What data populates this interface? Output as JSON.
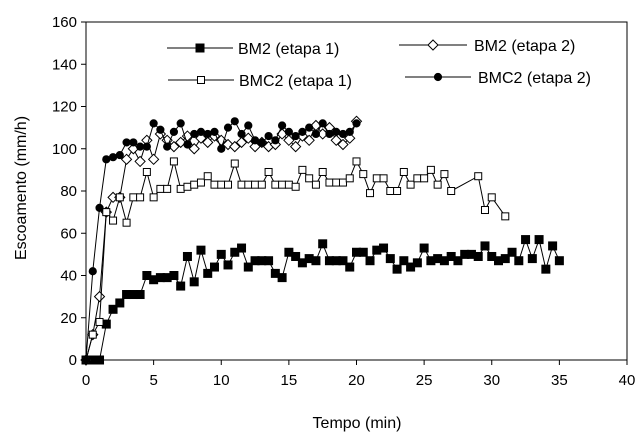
{
  "chart_data": {
    "type": "line",
    "title": "",
    "xlabel": "Tempo (min)",
    "ylabel": "Escoamento (mm/h)",
    "xlim": [
      0,
      40
    ],
    "ylim": [
      0,
      160
    ],
    "xticks": [
      0,
      5,
      10,
      15,
      20,
      25,
      30,
      35,
      40
    ],
    "yticks": [
      0,
      20,
      40,
      60,
      80,
      100,
      120,
      140,
      160
    ],
    "grid": false,
    "legend_position": "top",
    "series": [
      {
        "name": "BM2 (etapa 1)",
        "marker": "filled-square",
        "x": [
          0,
          0.3,
          0.6,
          1,
          1.5,
          2,
          2.5,
          3,
          3.5,
          4,
          4.5,
          5,
          5.5,
          6,
          6.5,
          7,
          7.5,
          8,
          8.5,
          9,
          9.5,
          10,
          10.5,
          11,
          11.5,
          12,
          12.5,
          13,
          13.5,
          14,
          14.5,
          15,
          15.5,
          16,
          16.5,
          17,
          17.5,
          18,
          18.5,
          19,
          19.5,
          20,
          20.5,
          21,
          21.5,
          22,
          22.5,
          23,
          23.5,
          24,
          24.5,
          25,
          25.5,
          26,
          26.5,
          27,
          27.5,
          28,
          28.5,
          29,
          29.5,
          30,
          30.5,
          31,
          31.5,
          32,
          32.5,
          33,
          33.5,
          34,
          34.5,
          35
        ],
        "y": [
          0,
          0,
          0,
          0,
          17,
          24,
          27,
          31,
          31,
          31,
          40,
          38,
          39,
          39,
          40,
          35,
          49,
          37,
          52,
          41,
          44,
          50,
          45,
          51,
          53,
          44,
          47,
          47,
          47,
          41,
          39,
          51,
          49,
          46,
          48,
          47,
          55,
          47,
          47,
          47,
          44,
          51,
          51,
          47,
          52,
          53,
          48,
          43,
          47,
          44,
          46,
          53,
          47,
          48,
          47,
          49,
          47,
          50,
          50,
          49,
          54,
          49,
          47,
          48,
          51,
          47,
          57,
          48,
          57,
          43,
          54,
          47
        ]
      },
      {
        "name": "BM2 (etapa 2)",
        "marker": "open-diamond",
        "x": [
          0,
          0.5,
          1,
          1.5,
          2,
          2.5,
          3,
          3.5,
          4,
          4.5,
          5,
          5.5,
          6,
          6.5,
          7,
          7.5,
          8,
          8.5,
          9,
          9.5,
          10,
          10.5,
          11,
          11.5,
          12,
          12.5,
          13,
          13.5,
          14,
          14.5,
          15,
          15.5,
          16,
          16.5,
          17,
          17.5,
          18,
          18.5,
          19,
          19.5,
          20
        ],
        "y": [
          0,
          12,
          30,
          70,
          77,
          77,
          95,
          100,
          94,
          104,
          95,
          107,
          104,
          101,
          103,
          106,
          100,
          105,
          103,
          106,
          104,
          102,
          101,
          103,
          105,
          101,
          103,
          101,
          102,
          107,
          104,
          101,
          106,
          104,
          111,
          107,
          110,
          104,
          102,
          105,
          113
        ]
      },
      {
        "name": "BMC2 (etapa 1)",
        "marker": "open-square",
        "x": [
          0,
          0.5,
          1,
          1.5,
          2,
          2.5,
          3,
          3.5,
          4,
          4.5,
          5,
          5.5,
          6,
          6.5,
          7,
          7.5,
          8,
          8.5,
          9,
          9.5,
          10,
          10.5,
          11,
          11.5,
          12,
          12.5,
          13,
          13.5,
          14,
          14.5,
          15,
          15.5,
          16,
          16.5,
          17,
          17.5,
          18,
          18.5,
          19,
          19.5,
          20,
          20.5,
          21,
          21.5,
          22,
          22.5,
          23,
          23.5,
          24,
          24.5,
          25,
          25.5,
          26,
          26.5,
          27,
          29,
          29.5,
          30,
          31
        ],
        "y": [
          0,
          12,
          18,
          70,
          66,
          77,
          65,
          77,
          77,
          89,
          77,
          81,
          81,
          94,
          81,
          82,
          83,
          84,
          87,
          83,
          83,
          83,
          93,
          83,
          83,
          83,
          83,
          89,
          83,
          83,
          83,
          82,
          90,
          86,
          83,
          89,
          84,
          84,
          84,
          86,
          94,
          88,
          79,
          86,
          86,
          80,
          80,
          89,
          83,
          86,
          86,
          90,
          83,
          88,
          80,
          87,
          71,
          77,
          68
        ]
      },
      {
        "name": "BMC2 (etapa 2)",
        "marker": "filled-circle",
        "x": [
          0,
          0.5,
          1,
          1.5,
          2,
          2.5,
          3,
          3.5,
          4,
          4.5,
          5,
          5.5,
          6,
          6.5,
          7,
          7.5,
          8,
          8.5,
          9,
          9.5,
          10,
          10.5,
          11,
          11.5,
          12,
          12.5,
          13,
          13.5,
          14,
          14.5,
          15,
          15.5,
          16,
          16.5,
          17,
          17.5,
          18,
          18.5,
          19,
          19.5,
          20
        ],
        "y": [
          0,
          42,
          72,
          95,
          96,
          97,
          103,
          103,
          101,
          101,
          112,
          109,
          101,
          108,
          112,
          102,
          107,
          108,
          107,
          108,
          100,
          110,
          113,
          107,
          111,
          104,
          103,
          106,
          104,
          111,
          108,
          106,
          108,
          110,
          107,
          112,
          107,
          108,
          107,
          108,
          112
        ]
      }
    ]
  }
}
